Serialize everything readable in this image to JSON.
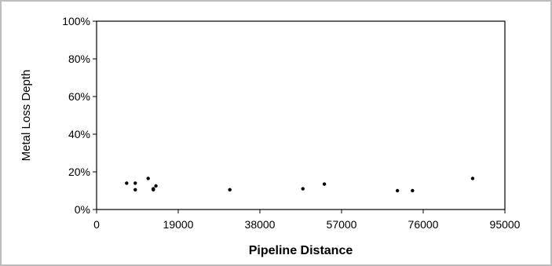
{
  "chart_data": {
    "type": "scatter",
    "title": "",
    "xlabel": "Pipeline Distance",
    "ylabel": "Metal Loss Depth",
    "xlim": [
      0,
      95000
    ],
    "ylim": [
      0,
      100
    ],
    "x_ticks": [
      "0",
      "19000",
      "38000",
      "57000",
      "76000",
      "95000"
    ],
    "y_ticks": [
      "0%",
      "20%",
      "40%",
      "60%",
      "80%",
      "100%"
    ],
    "grid": false,
    "legend": "none",
    "marker_color": "#000000",
    "series": [
      {
        "points": [
          {
            "x": 7000,
            "y": 14
          },
          {
            "x": 9000,
            "y": 14
          },
          {
            "x": 9000,
            "y": 10.5
          },
          {
            "x": 12000,
            "y": 16.5
          },
          {
            "x": 13200,
            "y": 11
          },
          {
            "x": 13200,
            "y": 10.5
          },
          {
            "x": 13800,
            "y": 12.5
          },
          {
            "x": 31000,
            "y": 10.5
          },
          {
            "x": 48000,
            "y": 11
          },
          {
            "x": 53000,
            "y": 13.5
          },
          {
            "x": 70000,
            "y": 10
          },
          {
            "x": 73500,
            "y": 10
          },
          {
            "x": 87500,
            "y": 16.5
          }
        ]
      }
    ]
  }
}
